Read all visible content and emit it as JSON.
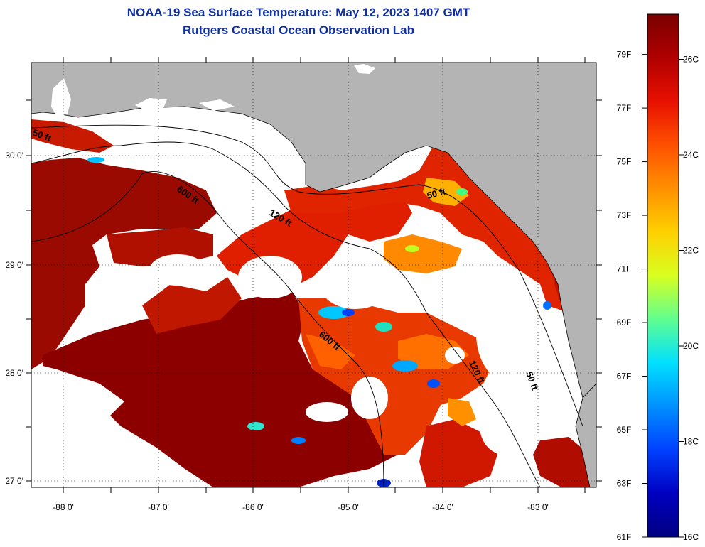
{
  "header": {
    "title_line1": "NOAA-19 Sea Surface Temperature:  May 12, 2023 1407 GMT",
    "title_line2": "Rutgers Coastal Ocean Observation Lab"
  },
  "map": {
    "lon_labels": [
      "-88 0'",
      "-87 0'",
      "-86 0'",
      "-85 0'",
      "-84 0'",
      "-83 0'"
    ],
    "lat_labels": [
      "30 0'",
      "29 0'",
      "28 0'",
      "27 0'"
    ],
    "contour_labels": [
      "50 ft",
      "600 ft",
      "120 ft",
      "50 ft",
      "600 ft",
      "120 ft",
      "50 ft"
    ],
    "colors": {
      "land": "#b4b4b4",
      "no_data": "#ffffff",
      "coastline": "#000000"
    }
  },
  "colorbar": {
    "fahrenheit_labels": [
      "79F",
      "77F",
      "75F",
      "73F",
      "71F",
      "69F",
      "67F",
      "65F",
      "63F",
      "61F"
    ],
    "celsius_labels": [
      "26C",
      "24C",
      "22C",
      "20C",
      "18C",
      "16C"
    ],
    "gradient_stops": [
      "#7a0000",
      "#b00000",
      "#e81000",
      "#ff5000",
      "#ff9000",
      "#ffd000",
      "#d8ff20",
      "#60ff90",
      "#00e0ff",
      "#0090ff",
      "#0040ff",
      "#0000c0",
      "#000080"
    ]
  }
}
